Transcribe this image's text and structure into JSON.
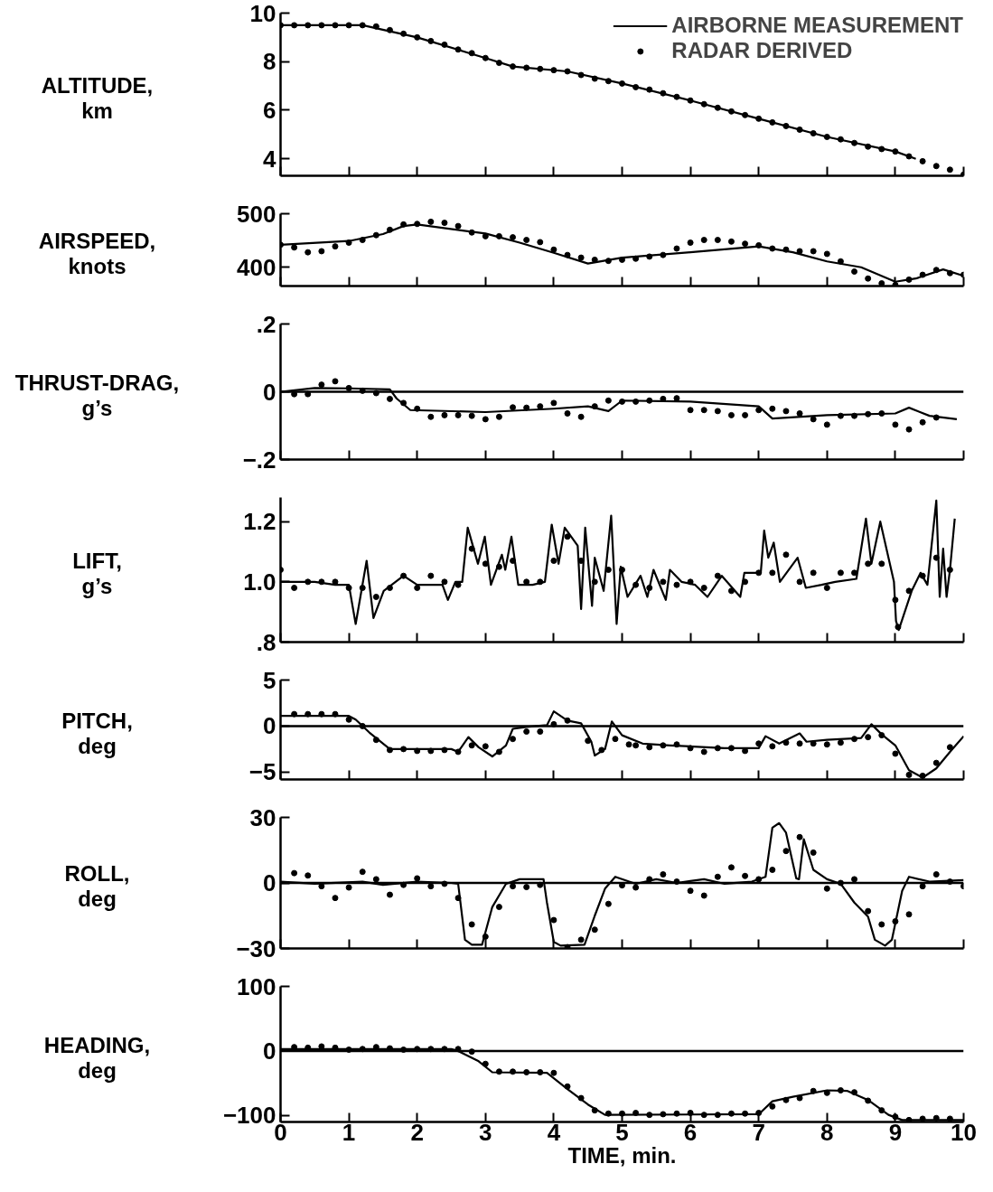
{
  "chart_data": [
    {
      "type": "line",
      "ylabel": "ALTITUDE,\nkm",
      "xlim": [
        0,
        10
      ],
      "xticks": [
        0,
        1,
        2,
        3,
        4,
        5,
        6,
        7,
        8,
        9,
        10
      ],
      "ylim": [
        3.3,
        10
      ],
      "yticks": [
        4,
        6,
        8,
        10
      ],
      "tick_labels": "y",
      "grid": false,
      "legend": "top right",
      "series": [
        {
          "name": "AIRBORNE MEASUREMENT",
          "color": "#000000",
          "line_style": "solid",
          "x": [
            0,
            1.2,
            2,
            3,
            3.4,
            4.2,
            5,
            6,
            7,
            8,
            9,
            9.3
          ],
          "values": [
            9.5,
            9.5,
            9.0,
            8.15,
            7.8,
            7.6,
            7.1,
            6.4,
            5.65,
            4.9,
            4.3,
            4.0
          ]
        },
        {
          "name": "RADAR DERIVED",
          "type": "scatter",
          "color": "#000000",
          "marker": "circle",
          "x": [
            0,
            0.2,
            0.4,
            0.6,
            0.8,
            1.0,
            1.2,
            1.4,
            1.6,
            1.8,
            2.0,
            2.2,
            2.4,
            2.6,
            2.8,
            3.0,
            3.2,
            3.4,
            3.6,
            3.8,
            4.0,
            4.2,
            4.4,
            4.6,
            4.8,
            5.0,
            5.2,
            5.4,
            5.6,
            5.8,
            6.0,
            6.2,
            6.4,
            6.6,
            6.8,
            7.0,
            7.2,
            7.4,
            7.6,
            7.8,
            8.0,
            8.2,
            8.4,
            8.6,
            8.8,
            9.0,
            9.2,
            9.4,
            9.6,
            9.8,
            10.0
          ],
          "values": [
            9.5,
            9.5,
            9.5,
            9.5,
            9.5,
            9.5,
            9.5,
            9.45,
            9.3,
            9.15,
            9.0,
            8.85,
            8.7,
            8.5,
            8.35,
            8.15,
            7.95,
            7.8,
            7.75,
            7.7,
            7.65,
            7.6,
            7.45,
            7.3,
            7.2,
            7.1,
            6.95,
            6.85,
            6.7,
            6.55,
            6.4,
            6.25,
            6.1,
            5.95,
            5.8,
            5.65,
            5.5,
            5.35,
            5.2,
            5.05,
            4.9,
            4.8,
            4.65,
            4.5,
            4.4,
            4.3,
            4.1,
            3.9,
            3.7,
            3.55,
            3.35
          ]
        }
      ]
    },
    {
      "type": "line",
      "ylabel": "AIRSPEED,\nknots",
      "xlim": [
        0,
        10
      ],
      "xticks": [
        0,
        1,
        2,
        3,
        4,
        5,
        6,
        7,
        8,
        9,
        10
      ],
      "ylim": [
        365,
        500
      ],
      "yticks": [
        400,
        500
      ],
      "tick_labels": "y",
      "grid": false,
      "series": [
        {
          "color": "#000000",
          "line_style": "solid",
          "x": [
            0,
            1,
            1.5,
            1.8,
            2,
            3,
            3.5,
            4,
            4.5,
            5,
            6,
            7,
            7.5,
            8,
            8.5,
            9,
            9.3,
            9.7,
            10
          ],
          "values": [
            442,
            449,
            462,
            477,
            480,
            463,
            446,
            427,
            407,
            418,
            428,
            439,
            428,
            411,
            400,
            373,
            379,
            396,
            384
          ]
        },
        {
          "type": "scatter",
          "color": "#000000",
          "marker": "circle",
          "x": [
            0,
            0.2,
            0.4,
            0.6,
            0.8,
            1.0,
            1.2,
            1.4,
            1.6,
            1.8,
            2.0,
            2.2,
            2.4,
            2.6,
            2.8,
            3.0,
            3.2,
            3.4,
            3.6,
            3.8,
            4.0,
            4.2,
            4.4,
            4.6,
            4.8,
            5.0,
            5.2,
            5.4,
            5.6,
            5.8,
            6.0,
            6.2,
            6.4,
            6.6,
            6.8,
            7.0,
            7.2,
            7.4,
            7.6,
            7.8,
            8.0,
            8.2,
            8.4,
            8.6,
            8.8,
            9.0,
            9.2,
            9.4,
            9.6,
            9.8,
            10.0
          ],
          "values": [
            442,
            437,
            428,
            430,
            439,
            446,
            451,
            460,
            470,
            480,
            481,
            485,
            483,
            477,
            465,
            458,
            458,
            456,
            451,
            447,
            433,
            423,
            418,
            414,
            412,
            414,
            416,
            420,
            423,
            435,
            446,
            451,
            451,
            448,
            444,
            441,
            435,
            433,
            430,
            430,
            425,
            411,
            392,
            379,
            370,
            367,
            377,
            386,
            395,
            389,
            386
          ]
        }
      ]
    },
    {
      "type": "line",
      "ylabel": "THRUST-DRAG,\ng’s",
      "xlim": [
        0,
        10
      ],
      "xticks": [
        0,
        1,
        2,
        3,
        4,
        5,
        6,
        7,
        8,
        9,
        10
      ],
      "ylim": [
        -0.2,
        0.2
      ],
      "yticks": [
        {
          "value": -0.2,
          "label": "−.2"
        },
        0,
        {
          "value": 0.2,
          "label": ".2"
        }
      ],
      "tick_labels": "y",
      "grid": false,
      "ref_lines": [
        {
          "axis": "y",
          "value": 0
        }
      ],
      "series": [
        {
          "color": "#000000",
          "line_style": "solid",
          "x": [
            0,
            0.5,
            1.0,
            1.6,
            1.7,
            1.9,
            3,
            4,
            4.5,
            4.8,
            5.0,
            6,
            7,
            7.2,
            8,
            9,
            9.2,
            9.5,
            9.9
          ],
          "values": [
            0,
            0.011,
            0.01,
            0.007,
            -0.02,
            -0.054,
            -0.06,
            -0.05,
            -0.043,
            -0.057,
            -0.026,
            -0.029,
            -0.043,
            -0.079,
            -0.069,
            -0.064,
            -0.047,
            -0.071,
            -0.081
          ]
        },
        {
          "type": "scatter",
          "color": "#000000",
          "marker": "circle",
          "x": [
            0.2,
            0.4,
            0.6,
            0.8,
            1.0,
            1.2,
            1.4,
            1.6,
            1.8,
            2.0,
            2.2,
            2.4,
            2.6,
            2.8,
            3.0,
            3.2,
            3.4,
            3.6,
            3.8,
            4.0,
            4.2,
            4.4,
            4.6,
            4.8,
            5.0,
            5.2,
            5.4,
            5.6,
            5.8,
            6.0,
            6.2,
            6.4,
            6.6,
            6.8,
            7.0,
            7.2,
            7.4,
            7.6,
            7.8,
            8.0,
            8.2,
            8.4,
            8.6,
            8.8,
            9.0,
            9.2,
            9.4,
            9.6
          ],
          "values": [
            -0.007,
            -0.007,
            0.021,
            0.031,
            0.011,
            0.003,
            -0.004,
            -0.021,
            -0.033,
            -0.05,
            -0.074,
            -0.069,
            -0.069,
            -0.071,
            -0.081,
            -0.074,
            -0.046,
            -0.047,
            -0.043,
            -0.033,
            -0.064,
            -0.074,
            -0.043,
            -0.026,
            -0.029,
            -0.029,
            -0.026,
            -0.021,
            -0.019,
            -0.054,
            -0.054,
            -0.057,
            -0.069,
            -0.069,
            -0.054,
            -0.05,
            -0.057,
            -0.064,
            -0.081,
            -0.097,
            -0.071,
            -0.071,
            -0.066,
            -0.064,
            -0.097,
            -0.111,
            -0.09,
            -0.076
          ]
        }
      ]
    },
    {
      "type": "line",
      "ylabel": "LIFT,\ng’s",
      "xlim": [
        0,
        10
      ],
      "xticks": [
        0,
        1,
        2,
        3,
        4,
        5,
        6,
        7,
        8,
        9,
        10
      ],
      "ylim": [
        0.8,
        1.28
      ],
      "yticks": [
        {
          "value": 0.8,
          "label": ".8"
        },
        {
          "value": 1.0,
          "label": "1.0"
        },
        {
          "value": 1.2,
          "label": "1.2"
        }
      ],
      "tick_labels": "y",
      "grid": false,
      "series": [
        {
          "color": "#000000",
          "line_style": "solid",
          "x": [
            0,
            0.5,
            0.8,
            1.0,
            1.1,
            1.26,
            1.36,
            1.51,
            1.8,
            2.0,
            2.37,
            2.45,
            2.56,
            2.66,
            2.74,
            2.89,
            2.99,
            3.08,
            3.24,
            3.29,
            3.38,
            3.48,
            3.69,
            3.87,
            3.97,
            4.07,
            4.16,
            4.35,
            4.4,
            4.46,
            4.56,
            4.6,
            4.73,
            4.84,
            4.92,
            4.98,
            5.08,
            5.27,
            5.37,
            5.46,
            5.64,
            5.7,
            5.87,
            6.07,
            6.25,
            6.46,
            6.73,
            6.79,
            7.03,
            7.08,
            7.14,
            7.22,
            7.31,
            7.57,
            7.69,
            7.92,
            8.12,
            8.43,
            8.57,
            8.65,
            8.78,
            8.98,
            9.01,
            9.05,
            9.24,
            9.37,
            9.47,
            9.6,
            9.65,
            9.7,
            9.75,
            9.8,
            9.87
          ],
          "values": [
            1.0,
            1.0,
            0.99,
            0.99,
            0.86,
            1.07,
            0.88,
            0.97,
            1.02,
            0.99,
            0.99,
            0.94,
            1.0,
            1.0,
            1.18,
            1.06,
            1.15,
            0.99,
            1.09,
            1.04,
            1.15,
            0.99,
            0.99,
            1.0,
            1.19,
            1.06,
            1.18,
            1.12,
            0.91,
            1.18,
            0.92,
            1.08,
            0.97,
            1.22,
            0.86,
            1.05,
            0.95,
            1.02,
            0.95,
            1.04,
            0.94,
            1.04,
            1.0,
            0.99,
            0.95,
            1.02,
            0.95,
            1.03,
            1.03,
            1.17,
            1.08,
            1.13,
            1.0,
            1.08,
            0.98,
            0.99,
            1.0,
            1.01,
            1.21,
            1.06,
            1.2,
            1.0,
            0.87,
            0.84,
            0.97,
            1.03,
            0.99,
            1.27,
            0.95,
            1.11,
            0.95,
            1.04,
            1.21
          ]
        },
        {
          "type": "scatter",
          "color": "#000000",
          "marker": "circle",
          "x": [
            0,
            0.2,
            0.4,
            0.6,
            0.8,
            1.0,
            1.2,
            1.4,
            1.6,
            1.8,
            2.0,
            2.2,
            2.4,
            2.6,
            2.8,
            3.0,
            3.2,
            3.4,
            3.6,
            3.8,
            4.0,
            4.2,
            4.4,
            4.6,
            4.8,
            5.0,
            5.2,
            5.4,
            5.6,
            5.8,
            6.0,
            6.2,
            6.4,
            6.6,
            6.8,
            7.0,
            7.2,
            7.4,
            7.6,
            7.8,
            8.0,
            8.2,
            8.4,
            8.6,
            8.8,
            9.0,
            9.04,
            9.2,
            9.4,
            9.6,
            9.8
          ],
          "values": [
            1.04,
            0.98,
            1.0,
            1.0,
            1.0,
            0.98,
            0.98,
            0.95,
            0.98,
            1.02,
            0.98,
            1.02,
            1.0,
            0.99,
            1.11,
            1.06,
            1.05,
            1.07,
            1.0,
            1.0,
            1.07,
            1.15,
            1.07,
            1.0,
            1.04,
            1.04,
            0.99,
            0.98,
            1.0,
            0.99,
            1.0,
            0.98,
            1.02,
            0.97,
            1.0,
            1.03,
            1.03,
            1.09,
            1.0,
            1.03,
            0.98,
            1.03,
            1.03,
            1.06,
            1.06,
            0.94,
            0.85,
            0.97,
            1.02,
            1.08,
            1.04
          ]
        }
      ]
    },
    {
      "type": "line",
      "ylabel": "PITCH,\ndeg",
      "xlim": [
        0,
        10
      ],
      "xticks": [
        0,
        1,
        2,
        3,
        4,
        5,
        6,
        7,
        8,
        9,
        10
      ],
      "ylim": [
        -5.8,
        5
      ],
      "yticks": [
        {
          "value": -5,
          "label": "−5"
        },
        0,
        5
      ],
      "tick_labels": "y",
      "grid": false,
      "ref_lines": [
        {
          "axis": "y",
          "value": 0
        }
      ],
      "series": [
        {
          "color": "#000000",
          "line_style": "solid",
          "x": [
            0,
            1.0,
            1.1,
            1.3,
            1.6,
            2.5,
            2.6,
            2.75,
            2.9,
            3.1,
            3.3,
            3.4,
            3.6,
            3.9,
            4.0,
            4.2,
            4.4,
            4.55,
            4.6,
            4.75,
            4.85,
            5.0,
            5.3,
            5.7,
            6.5,
            7.0,
            7.1,
            7.3,
            7.6,
            7.7,
            8.0,
            8.5,
            8.65,
            8.8,
            9.0,
            9.2,
            9.4,
            9.6,
            9.8,
            10
          ],
          "values": [
            1.1,
            1.1,
            0.7,
            -0.7,
            -2.5,
            -2.5,
            -2.8,
            -1.2,
            -2.3,
            -3.3,
            -2.1,
            -0.3,
            -0.1,
            0.1,
            1.6,
            0.6,
            0.3,
            -1.7,
            -3.2,
            -2.5,
            0.5,
            -1.0,
            -1.9,
            -2.1,
            -2.4,
            -2.4,
            -1.1,
            -1.9,
            -0.8,
            -1.7,
            -1.5,
            -1.3,
            0.2,
            -0.9,
            -2.1,
            -4.8,
            -5.6,
            -4.6,
            -2.8,
            -1.1
          ]
        },
        {
          "type": "scatter",
          "color": "#000000",
          "marker": "circle",
          "x": [
            0.2,
            0.4,
            0.6,
            0.8,
            1.0,
            1.2,
            1.4,
            1.6,
            1.8,
            2.0,
            2.2,
            2.4,
            2.6,
            2.8,
            3.0,
            3.2,
            3.4,
            3.6,
            3.8,
            4.0,
            4.2,
            4.5,
            4.7,
            4.9,
            5.1,
            5.2,
            5.4,
            5.6,
            5.8,
            6.0,
            6.2,
            6.4,
            6.6,
            6.8,
            7.0,
            7.2,
            7.4,
            7.6,
            7.8,
            8.0,
            8.2,
            8.4,
            8.6,
            8.8,
            9.0,
            9.2,
            9.4,
            9.6,
            9.8
          ],
          "values": [
            1.3,
            1.3,
            1.3,
            1.3,
            0.7,
            0.0,
            -1.5,
            -2.6,
            -2.5,
            -2.7,
            -2.7,
            -2.6,
            -2.8,
            -2.1,
            -2.2,
            -2.8,
            -1.4,
            -0.6,
            -0.6,
            0.2,
            0.6,
            -1.6,
            -2.6,
            -1.4,
            -2.0,
            -2.1,
            -2.3,
            -2.1,
            -2.0,
            -2.4,
            -2.8,
            -2.4,
            -2.4,
            -2.7,
            -1.9,
            -2.2,
            -1.8,
            -1.9,
            -1.9,
            -2.0,
            -1.8,
            -1.4,
            -1.2,
            -1.0,
            -3.0,
            -5.3,
            -5.4,
            -4.0,
            -2.3
          ]
        }
      ]
    },
    {
      "type": "line",
      "ylabel": "ROLL,\ndeg",
      "xlim": [
        0,
        10
      ],
      "xticks": [
        0,
        1,
        2,
        3,
        4,
        5,
        6,
        7,
        8,
        9,
        10
      ],
      "ylim": [
        -30,
        30
      ],
      "yticks": [
        {
          "value": -30,
          "label": "−30"
        },
        0,
        30
      ],
      "tick_labels": "y",
      "grid": false,
      "ref_lines": [
        {
          "axis": "y",
          "value": 0
        }
      ],
      "series": [
        {
          "color": "#000000",
          "line_style": "solid",
          "x": [
            0,
            0.5,
            1.2,
            1.5,
            2.0,
            2.5,
            2.6,
            2.7,
            2.8,
            2.95,
            3.1,
            3.3,
            3.5,
            3.85,
            3.9,
            4.0,
            4.1,
            4.45,
            4.6,
            4.75,
            4.9,
            5.2,
            5.5,
            5.8,
            6.2,
            6.5,
            6.9,
            7.1,
            7.2,
            7.3,
            7.4,
            7.55,
            7.59,
            7.66,
            7.8,
            8.0,
            8.2,
            8.4,
            8.6,
            8.7,
            8.85,
            8.95,
            9.1,
            9.2,
            9.5,
            10
          ],
          "values": [
            0.6,
            -0.4,
            0.6,
            -0.9,
            0.6,
            0,
            -0.4,
            -26,
            -28.3,
            -28.3,
            -11,
            -0.4,
            1.7,
            1.7,
            -9,
            -27,
            -28.7,
            -28.3,
            -15,
            -2.6,
            2.8,
            -0.4,
            1.7,
            0,
            1.7,
            -0.4,
            0.6,
            2.8,
            25.3,
            27.4,
            23,
            2.1,
            1.7,
            20,
            6,
            1.7,
            -0.4,
            -9,
            -15.4,
            -26,
            -28.7,
            -26,
            -3.6,
            2.8,
            0.6,
            1.3
          ]
        },
        {
          "type": "scatter",
          "color": "#000000",
          "marker": "circle",
          "x": [
            0.2,
            0.4,
            0.6,
            0.8,
            1.0,
            1.2,
            1.4,
            1.6,
            1.8,
            2.0,
            2.2,
            2.4,
            2.6,
            2.8,
            3.0,
            3.2,
            3.4,
            3.6,
            3.8,
            4.0,
            4.2,
            4.4,
            4.6,
            4.8,
            5.0,
            5.2,
            5.4,
            5.6,
            5.8,
            6.0,
            6.2,
            6.4,
            6.6,
            6.8,
            7.0,
            7.2,
            7.4,
            7.6,
            7.8,
            8.0,
            8.2,
            8.4,
            8.6,
            8.8,
            9.0,
            9.2,
            9.4,
            9.6,
            9.8,
            10.0
          ],
          "values": [
            4.5,
            3.4,
            -1.5,
            -6.9,
            -2.1,
            5.1,
            1.7,
            -5.4,
            -0.9,
            2.1,
            -1.5,
            -0.4,
            -6.9,
            -19,
            -24.6,
            -11,
            -1.5,
            -1.9,
            -0.9,
            -17,
            -29.4,
            -26,
            -21.4,
            -9.6,
            -1.1,
            -2.1,
            1.7,
            3.9,
            0.6,
            -3.6,
            -5.8,
            2.8,
            7.1,
            3.2,
            1.7,
            6,
            14.6,
            21,
            13.9,
            -2.6,
            0,
            1.7,
            -12.9,
            -19,
            -17.6,
            -14.4,
            -1.5,
            3.9,
            0.6,
            -1.5
          ]
        }
      ]
    },
    {
      "type": "line",
      "ylabel": "HEADING,\ndeg",
      "xlabel": "TIME, min.",
      "xlim": [
        0,
        10
      ],
      "xticks": [
        0,
        1,
        2,
        3,
        4,
        5,
        6,
        7,
        8,
        9,
        10
      ],
      "ylim": [
        -110,
        100
      ],
      "yticks": [
        {
          "value": -100,
          "label": "−100"
        },
        0,
        100
      ],
      "grid": false,
      "ref_lines": [
        {
          "axis": "y",
          "value": 0
        }
      ],
      "series": [
        {
          "color": "#000000",
          "line_style": "solid",
          "x": [
            0,
            2.5,
            2.6,
            2.9,
            3.1,
            3.9,
            4.2,
            4.5,
            4.75,
            7.0,
            7.2,
            7.5,
            8.0,
            8.3,
            8.6,
            8.9,
            9.1,
            10
          ],
          "values": [
            3,
            3,
            0,
            -16,
            -33,
            -34,
            -59,
            -83,
            -99,
            -98,
            -78,
            -71,
            -61,
            -62,
            -76,
            -99,
            -107,
            -107
          ]
        },
        {
          "type": "scatter",
          "color": "#000000",
          "marker": "circle",
          "x": [
            0.2,
            0.4,
            0.6,
            0.8,
            1.0,
            1.2,
            1.4,
            1.6,
            1.8,
            2.0,
            2.2,
            2.4,
            2.6,
            2.8,
            3.0,
            3.2,
            3.4,
            3.6,
            3.8,
            4.0,
            4.2,
            4.4,
            4.6,
            4.8,
            5.0,
            5.2,
            5.4,
            5.6,
            5.8,
            6.0,
            6.2,
            6.4,
            6.6,
            6.8,
            7.0,
            7.2,
            7.4,
            7.6,
            7.8,
            8.0,
            8.2,
            8.4,
            8.6,
            8.8,
            9.0,
            9.2,
            9.4,
            9.6,
            9.8
          ],
          "values": [
            6,
            5,
            7,
            5,
            2,
            3,
            6,
            4,
            2,
            3,
            3,
            3,
            3,
            -1,
            -20,
            -32,
            -32,
            -33,
            -33,
            -34,
            -55,
            -73,
            -92,
            -97,
            -97,
            -96,
            -99,
            -98,
            -97,
            -96,
            -99,
            -99,
            -97,
            -97,
            -96,
            -86,
            -76,
            -73,
            -62,
            -65,
            -61,
            -64,
            -77,
            -92,
            -102,
            -107,
            -105,
            -104,
            -105
          ]
        }
      ]
    }
  ]
}
